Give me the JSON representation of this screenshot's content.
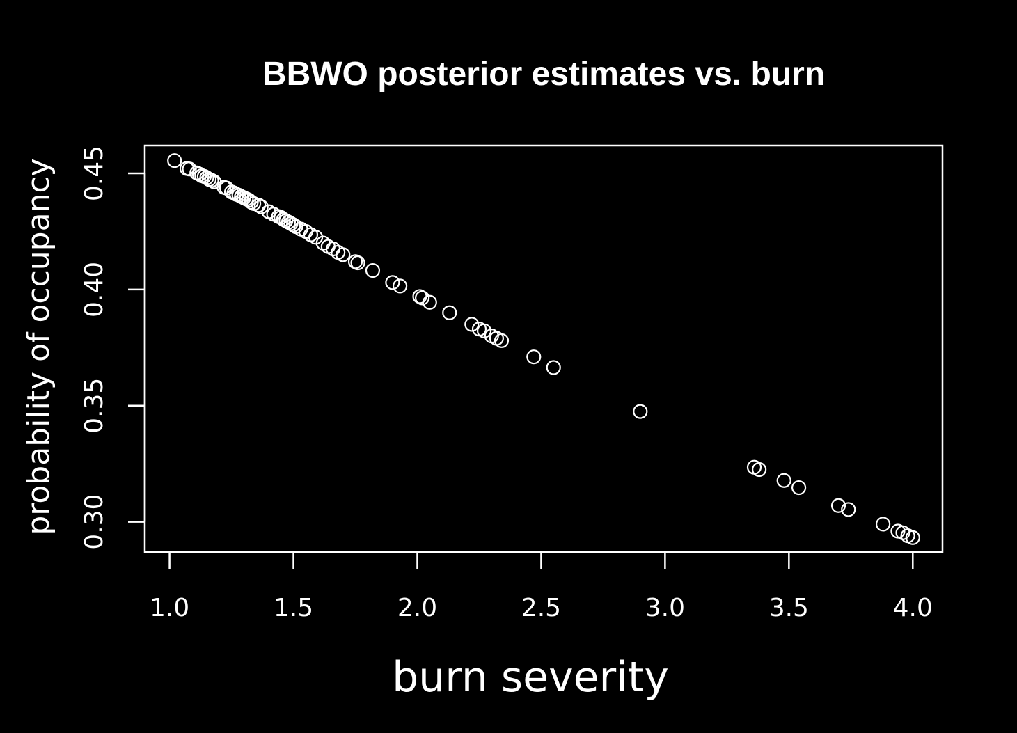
{
  "chart_data": {
    "type": "scatter",
    "title": "BBWO posterior estimates vs. burn",
    "xlabel": "burn severity",
    "ylabel": "probability of occupancy",
    "xlim": [
      0.9,
      4.12
    ],
    "ylim": [
      0.287,
      0.462
    ],
    "xticks": [
      "1.0",
      "1.5",
      "2.0",
      "2.5",
      "3.0",
      "3.5",
      "4.0"
    ],
    "yticks": [
      "0.30",
      "0.35",
      "0.40",
      "0.45"
    ],
    "grid": false,
    "legend": "none",
    "point_color": "#ffffff",
    "background": "#000000",
    "x": [
      1.02,
      1.07,
      1.08,
      1.11,
      1.12,
      1.13,
      1.14,
      1.15,
      1.16,
      1.17,
      1.18,
      1.22,
      1.23,
      1.25,
      1.26,
      1.27,
      1.28,
      1.29,
      1.3,
      1.31,
      1.32,
      1.33,
      1.34,
      1.36,
      1.37,
      1.4,
      1.42,
      1.44,
      1.45,
      1.46,
      1.47,
      1.48,
      1.49,
      1.5,
      1.51,
      1.53,
      1.55,
      1.57,
      1.59,
      1.62,
      1.64,
      1.66,
      1.68,
      1.7,
      1.75,
      1.76,
      1.82,
      1.9,
      1.93,
      2.01,
      2.02,
      2.05,
      2.13,
      2.22,
      2.25,
      2.27,
      2.3,
      2.32,
      2.34,
      2.47,
      2.55,
      2.9,
      3.36,
      3.38,
      3.48,
      3.54,
      3.7,
      3.74,
      3.88,
      3.94,
      3.96,
      3.98,
      4.0
    ],
    "y": [
      0.4555,
      0.4521,
      0.4519,
      0.4502,
      0.4497,
      0.449,
      0.4487,
      0.4481,
      0.4474,
      0.447,
      0.4464,
      0.444,
      0.4437,
      0.442,
      0.4416,
      0.441,
      0.4406,
      0.44,
      0.4395,
      0.439,
      0.4385,
      0.4376,
      0.437,
      0.4363,
      0.4356,
      0.4335,
      0.4324,
      0.4314,
      0.431,
      0.4302,
      0.4296,
      0.429,
      0.4284,
      0.4278,
      0.4271,
      0.426,
      0.425,
      0.4236,
      0.4225,
      0.42,
      0.4185,
      0.4175,
      0.416,
      0.415,
      0.412,
      0.4115,
      0.4082,
      0.403,
      0.4015,
      0.397,
      0.3964,
      0.3945,
      0.39,
      0.385,
      0.383,
      0.3822,
      0.38,
      0.379,
      0.378,
      0.371,
      0.3664,
      0.3475,
      0.3235,
      0.3225,
      0.3178,
      0.3147,
      0.307,
      0.3053,
      0.299,
      0.296,
      0.2953,
      0.294,
      0.2932
    ]
  }
}
